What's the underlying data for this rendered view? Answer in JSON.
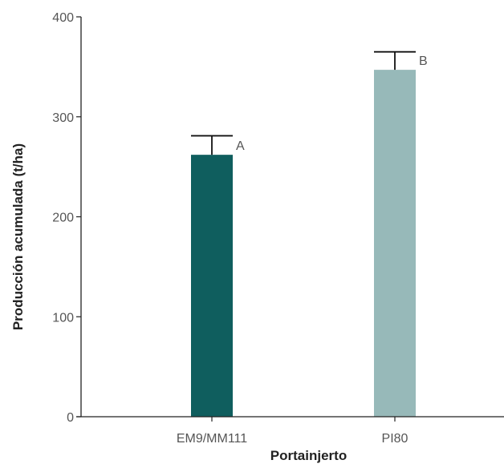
{
  "chart_data": {
    "type": "bar",
    "categories": [
      "EM9/MM111",
      "PI80"
    ],
    "values": [
      262,
      347
    ],
    "errors": [
      19,
      18
    ],
    "significance": [
      "A",
      "B"
    ],
    "colors": [
      "#0f5e5e",
      "#97b9b9"
    ],
    "xlabel": "Portainjerto",
    "ylabel": "Producción acumulada (t/ha)",
    "ylim": [
      0,
      400
    ],
    "yticks": [
      0,
      100,
      200,
      300,
      400
    ],
    "grid": false,
    "legend": "none"
  }
}
